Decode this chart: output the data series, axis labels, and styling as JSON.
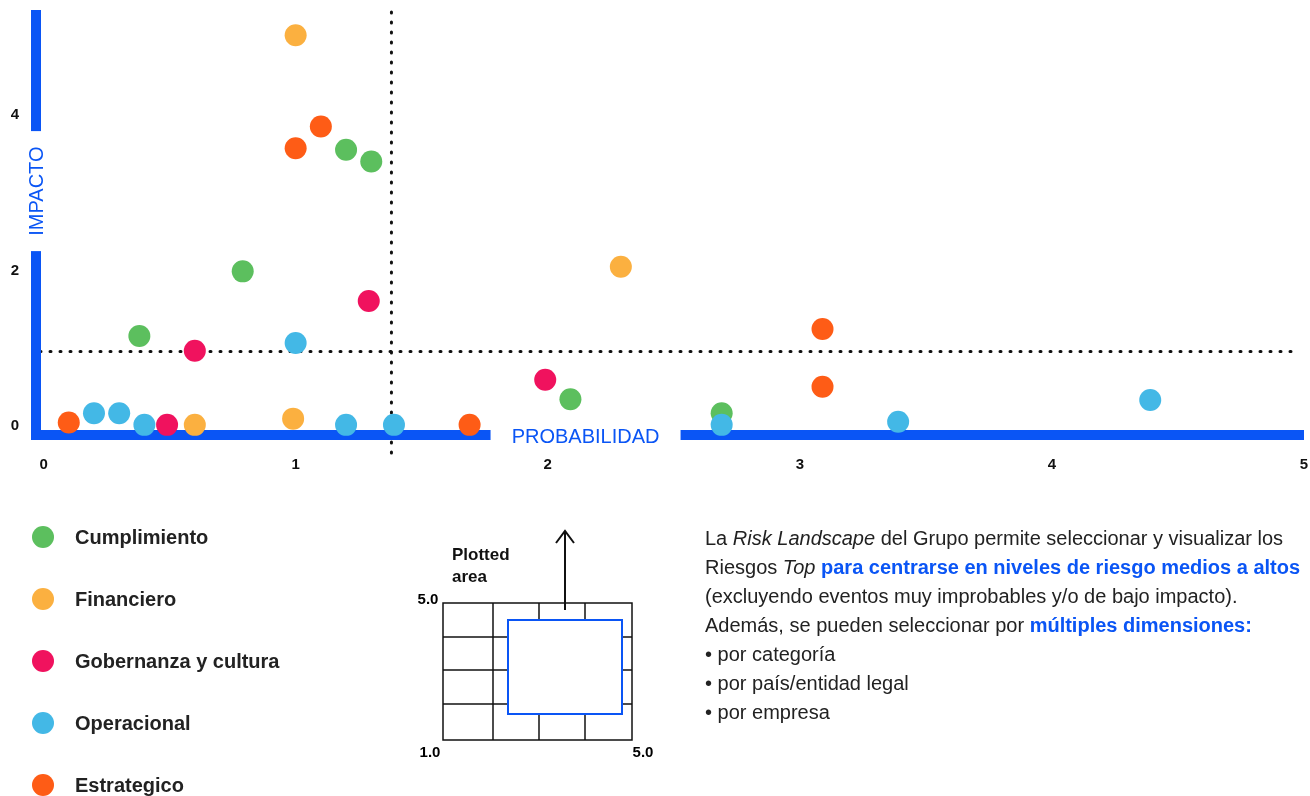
{
  "chart_data": {
    "type": "scatter",
    "xlabel": "PROBABILIDAD",
    "ylabel": "IMPACTO",
    "xlim": [
      -0.03,
      5
    ],
    "ylim": [
      -0.13,
      5.26
    ],
    "xticks": [
      0,
      1,
      2,
      3,
      4,
      5
    ],
    "yticks": [
      0,
      2,
      4
    ],
    "grid": false,
    "legend": "bottom",
    "marker": "circle",
    "ref_lines": [
      {
        "axis": "x",
        "value": 1.38,
        "color": "#111111",
        "line_style": "dotted"
      },
      {
        "axis": "y",
        "value": 0.94,
        "color": "#111111",
        "line_style": "dotted"
      }
    ],
    "series": [
      {
        "name": "Cumplimiento",
        "color": "#5cbf5e",
        "x": [
          0.38,
          0.79,
          1.2,
          1.3,
          2.09,
          2.69
        ],
        "values": [
          1.14,
          1.97,
          3.53,
          3.38,
          0.33,
          0.15
        ]
      },
      {
        "name": "Financiero",
        "color": "#fbb040",
        "x": [
          1.0,
          0.6,
          0.99,
          2.29
        ],
        "values": [
          5.0,
          0,
          0.08,
          2.03
        ]
      },
      {
        "name": "Gobernanza y cultura",
        "color": "#f0125e",
        "x": [
          0.6,
          0.49,
          1.29,
          1.99
        ],
        "values": [
          0.95,
          0,
          1.59,
          0.58
        ]
      },
      {
        "name": "Operacional",
        "color": "#43b8e6",
        "x": [
          0.2,
          0.3,
          0.4,
          1.0,
          1.2,
          1.39,
          2.69,
          3.39,
          4.39
        ],
        "values": [
          0.15,
          0.15,
          0,
          1.05,
          0,
          0,
          0,
          0.04,
          0.32
        ]
      },
      {
        "name": "Estrategico",
        "color": "#fe5c16",
        "x": [
          0.1,
          1.0,
          1.1,
          1.69,
          3.09,
          3.09
        ],
        "values": [
          0.03,
          3.55,
          3.83,
          0,
          1.23,
          0.49
        ]
      }
    ],
    "annotations": [
      "Plotted area",
      "5.0",
      "1.0",
      "5.0",
      "La ",
      "Risk Landscape",
      " del Grupo permite seleccionar y visualizar los Riesgos ",
      "Top",
      " para centrarse en niveles de riesgo medios a altos",
      " (excluyendo eventos muy improbables y/o de bajo impacto). Además, se pueden seleccionar por ",
      "múltiples dimensiones:",
      "• por categoría",
      "• por país/entidad legal",
      "• por empresa"
    ]
  }
}
